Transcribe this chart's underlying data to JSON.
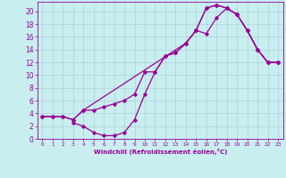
{
  "xlabel": "Windchill (Refroidissement éolien,°C)",
  "bg_color": "#c8eef0",
  "grid_color": "#b0d0d8",
  "line_color": "#990099",
  "xlim": [
    -0.5,
    23.5
  ],
  "ylim": [
    0,
    21.5
  ],
  "xticks": [
    0,
    1,
    2,
    3,
    4,
    5,
    6,
    7,
    8,
    9,
    10,
    11,
    12,
    13,
    14,
    15,
    16,
    17,
    18,
    19,
    20,
    21,
    22,
    23
  ],
  "yticks": [
    0,
    2,
    4,
    6,
    8,
    10,
    12,
    14,
    16,
    18,
    20
  ],
  "curve1_x": [
    0,
    1,
    2,
    3,
    4,
    5,
    6,
    7,
    8,
    9,
    10,
    11,
    12,
    13,
    14,
    15,
    16,
    17,
    18,
    19,
    20,
    21,
    22,
    23
  ],
  "curve1_y": [
    3.5,
    3.5,
    3.5,
    3.0,
    4.5,
    4.5,
    5.0,
    5.5,
    6.0,
    7.0,
    10.5,
    10.5,
    13.0,
    13.5,
    15.0,
    17.0,
    20.5,
    21.0,
    20.5,
    19.5,
    17.0,
    14.0,
    12.0,
    12.0
  ],
  "curve2_x": [
    0,
    1,
    2,
    3,
    4,
    14,
    15,
    16,
    17,
    18,
    19,
    20,
    21,
    22,
    23
  ],
  "curve2_y": [
    3.5,
    3.5,
    3.5,
    3.0,
    4.5,
    15.0,
    17.0,
    20.5,
    21.0,
    20.5,
    19.5,
    17.0,
    14.0,
    12.0,
    12.0
  ],
  "curve3_x": [
    3,
    4,
    5,
    6,
    7,
    8,
    9,
    10,
    11,
    12,
    13,
    14,
    15,
    16,
    17,
    18,
    19,
    20,
    21,
    22,
    23
  ],
  "curve3_y": [
    2.5,
    2.0,
    1.0,
    0.5,
    0.5,
    1.0,
    3.0,
    7.0,
    10.5,
    13.0,
    13.5,
    15.0,
    17.0,
    16.5,
    19.0,
    20.5,
    19.5,
    17.0,
    14.0,
    12.0,
    12.0
  ]
}
